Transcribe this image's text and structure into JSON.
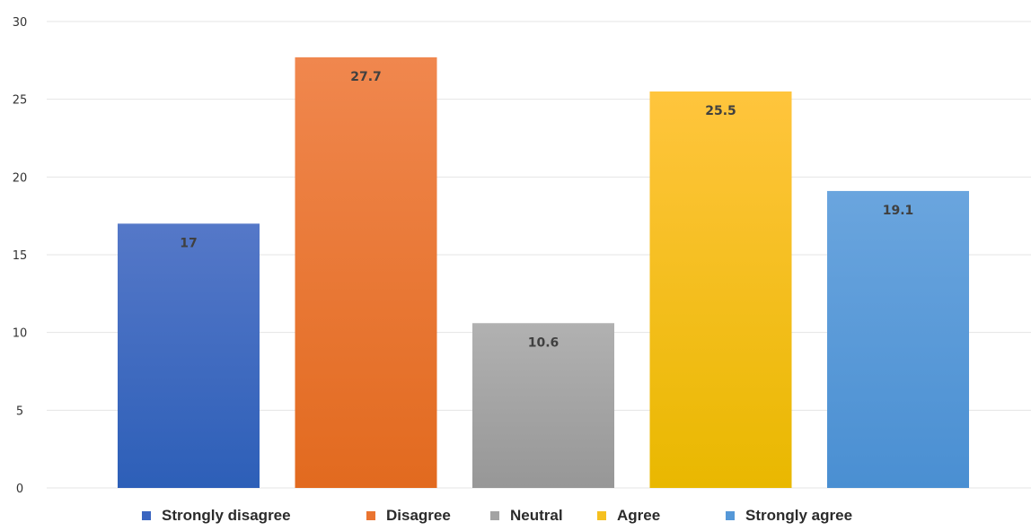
{
  "chart_data": {
    "type": "bar",
    "title": "",
    "xlabel": "",
    "ylabel": "",
    "ylim": [
      0,
      30
    ],
    "yticks": [
      0,
      5,
      10,
      15,
      20,
      25,
      30
    ],
    "grid": true,
    "legend_position": "bottom",
    "categories": [
      "Strongly disagree",
      "Disagree",
      "Neutral",
      "Agree",
      "Strongly agree"
    ],
    "values": [
      17,
      27.7,
      10.6,
      25.5,
      19.1
    ],
    "data_labels": [
      "17",
      "27.7",
      "10.6",
      "25.5",
      "19.1"
    ],
    "colors": [
      {
        "top": "#5578c8",
        "bottom": "#2d5fb8"
      },
      {
        "top": "#f0874e",
        "bottom": "#e26a1f"
      },
      {
        "top": "#b1b1b1",
        "bottom": "#979797"
      },
      {
        "top": "#ffc53d",
        "bottom": "#e9b800"
      },
      {
        "top": "#6aa5de",
        "bottom": "#4a8fd2"
      }
    ],
    "legend_colors": [
      "#3a65c0",
      "#ea7430",
      "#a3a3a3",
      "#f5c020",
      "#5598d8"
    ]
  }
}
